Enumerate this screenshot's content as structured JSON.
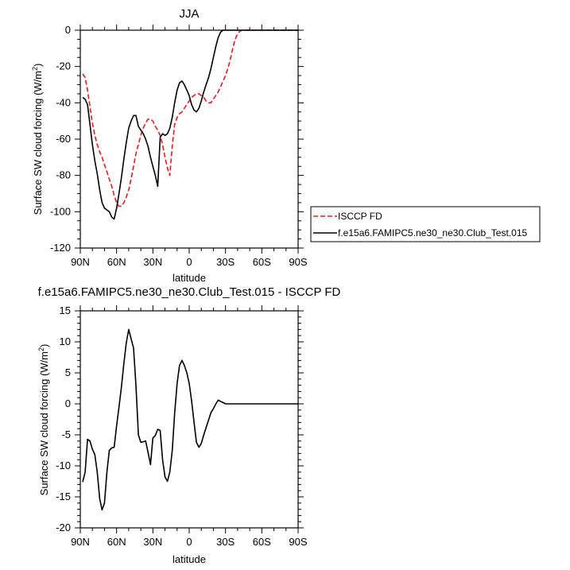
{
  "chart_data": [
    {
      "type": "line",
      "title": "JJA",
      "xlabel": "latitude",
      "ylabel": "Surface SW cloud forcing (W/m",
      "ylabel_sup": "2",
      "ylabel_close": ")",
      "xlim": [
        90,
        -90
      ],
      "ylim": [
        -120,
        0
      ],
      "x_ticks": [
        {
          "value": 90,
          "label": "90N"
        },
        {
          "value": 60,
          "label": "60N"
        },
        {
          "value": 30,
          "label": "30N"
        },
        {
          "value": 0,
          "label": "0"
        },
        {
          "value": -30,
          "label": "30S"
        },
        {
          "value": -60,
          "label": "60S"
        },
        {
          "value": -90,
          "label": "90S"
        }
      ],
      "y_ticks": [
        0,
        -20,
        -40,
        -60,
        -80,
        -100,
        -120
      ],
      "grid": false,
      "legend": {
        "placement": "right-outside"
      },
      "series": [
        {
          "name": "ISCCP FD",
          "color": "#e8191f",
          "dash": "dashed",
          "x": [
            88,
            86,
            84,
            82,
            80,
            78,
            76,
            74,
            72,
            70,
            68,
            66,
            64,
            62,
            60,
            58,
            56,
            54,
            52,
            50,
            48,
            46,
            44,
            42,
            40,
            38,
            36,
            34,
            32,
            30,
            28,
            26,
            24,
            22,
            20,
            18,
            16,
            14,
            12,
            10,
            8,
            6,
            4,
            2,
            0,
            -2,
            -4,
            -6,
            -8,
            -10,
            -12,
            -14,
            -16,
            -18,
            -20,
            -22,
            -24,
            -26,
            -28,
            -30,
            -32,
            -34,
            -36,
            -38,
            -40,
            -42,
            -44,
            -46,
            -48,
            -50,
            -52,
            -54,
            -56,
            -58,
            -60,
            -62,
            -64,
            -66,
            -68,
            -70,
            -72,
            -74,
            -76,
            -78,
            -80,
            -82,
            -84,
            -86,
            -88,
            -90
          ],
          "values": [
            -24,
            -26,
            -33,
            -42,
            -51,
            -58,
            -63,
            -67,
            -70,
            -74,
            -78,
            -82,
            -86,
            -91,
            -95,
            -97,
            -97,
            -95,
            -92,
            -88,
            -82,
            -75,
            -68,
            -63,
            -58,
            -54,
            -51,
            -49,
            -49,
            -50,
            -53,
            -55,
            -58,
            -63,
            -70,
            -76,
            -80,
            -64,
            -52,
            -48,
            -46,
            -45,
            -43,
            -41,
            -39,
            -37,
            -36,
            -35,
            -35,
            -36,
            -37,
            -39,
            -40,
            -40,
            -38,
            -36,
            -34,
            -31,
            -28,
            -25,
            -21,
            -16,
            -10,
            -5,
            -2,
            -0.5,
            0,
            0,
            0,
            0,
            0,
            0,
            0,
            0,
            0,
            0,
            0,
            0,
            0,
            0,
            0,
            0,
            0,
            0,
            0,
            0,
            0,
            0,
            0,
            0
          ]
        },
        {
          "name": "f.e15a6.FAMIPC5.ne30_ne30.Club_Test.015",
          "color": "#000000",
          "dash": "solid",
          "x": [
            88,
            86,
            84,
            82,
            80,
            78,
            76,
            74,
            72,
            70,
            68,
            66,
            64,
            62,
            60,
            58,
            56,
            54,
            52,
            50,
            48,
            46,
            44,
            42,
            40,
            38,
            36,
            34,
            32,
            30,
            28,
            26,
            24,
            22,
            20,
            18,
            16,
            14,
            12,
            10,
            8,
            6,
            4,
            2,
            0,
            -2,
            -4,
            -6,
            -8,
            -10,
            -12,
            -14,
            -16,
            -18,
            -20,
            -22,
            -24,
            -26,
            -28,
            -30,
            -32,
            -34,
            -36,
            -38,
            -40,
            -42,
            -44,
            -46,
            -48,
            -50,
            -52,
            -54,
            -56,
            -58,
            -60,
            -62,
            -64,
            -66,
            -68,
            -70,
            -72,
            -74,
            -76,
            -78,
            -80,
            -82,
            -84,
            -86,
            -88,
            -90
          ],
          "values": [
            -37,
            -38,
            -41,
            -52,
            -63,
            -72,
            -79,
            -88,
            -95,
            -98,
            -99,
            -100,
            -103,
            -104,
            -98,
            -90,
            -81,
            -71,
            -62,
            -54,
            -50,
            -47,
            -47,
            -53,
            -55,
            -57,
            -60,
            -64,
            -70,
            -75,
            -80,
            -86,
            -59,
            -57,
            -58,
            -57,
            -54,
            -48,
            -40,
            -33,
            -29,
            -28,
            -30,
            -33,
            -36,
            -41,
            -44,
            -45,
            -43,
            -39,
            -34,
            -30,
            -26,
            -21,
            -15,
            -9,
            -4,
            -1,
            0,
            0,
            0,
            0,
            0,
            0,
            0,
            0,
            0,
            0,
            0,
            0,
            0,
            0,
            0,
            0,
            0,
            0,
            0,
            0,
            0,
            0,
            0,
            0,
            0,
            0,
            0,
            0,
            0,
            0,
            0,
            0
          ]
        }
      ]
    },
    {
      "type": "line",
      "title": "f.e15a6.FAMIPC5.ne30_ne30.Club_Test.015 - ISCCP FD",
      "xlabel": "latitude",
      "ylabel": "Surface SW cloud forcing (W/m",
      "ylabel_sup": "2",
      "ylabel_close": ")",
      "xlim": [
        90,
        -90
      ],
      "ylim": [
        -20,
        15
      ],
      "x_ticks": [
        {
          "value": 90,
          "label": "90N"
        },
        {
          "value": 60,
          "label": "60N"
        },
        {
          "value": 30,
          "label": "30N"
        },
        {
          "value": 0,
          "label": "0"
        },
        {
          "value": -30,
          "label": "30S"
        },
        {
          "value": -60,
          "label": "60S"
        },
        {
          "value": -90,
          "label": "90S"
        }
      ],
      "y_ticks": [
        15,
        10,
        5,
        0,
        -5,
        -10,
        -15,
        -20
      ],
      "grid": false,
      "series": [
        {
          "color": "#000000",
          "dash": "solid",
          "x": [
            88,
            86,
            84,
            82,
            80,
            78,
            76,
            74,
            72,
            70,
            68,
            66,
            64,
            62,
            60,
            58,
            56,
            54,
            52,
            50,
            48,
            46,
            44,
            42,
            40,
            38,
            36,
            34,
            32,
            30,
            28,
            26,
            24,
            22,
            20,
            18,
            16,
            14,
            12,
            10,
            8,
            6,
            4,
            2,
            0,
            -2,
            -4,
            -6,
            -8,
            -10,
            -12,
            -14,
            -16,
            -18,
            -20,
            -22,
            -24,
            -26,
            -28,
            -30,
            -32,
            -34,
            -36,
            -38,
            -40,
            -42,
            -44,
            -46,
            -48,
            -50,
            -52,
            -54,
            -56,
            -58,
            -60,
            -62,
            -64,
            -66,
            -68,
            -70,
            -72,
            -74,
            -76,
            -78,
            -80,
            -82,
            -84,
            -86,
            -88,
            -90
          ],
          "values": [
            -12.6,
            -11,
            -5.7,
            -6,
            -7.3,
            -8.2,
            -11,
            -15.3,
            -17.1,
            -16,
            -11,
            -7.5,
            -7.1,
            -7,
            -3.5,
            -0.5,
            2.8,
            6.5,
            9.8,
            12,
            10.5,
            9,
            3,
            -5,
            -6.2,
            -6.1,
            -6,
            -7.8,
            -9.8,
            -5.5,
            -5.1,
            -4.1,
            -4.3,
            -9,
            -11.8,
            -12.5,
            -11,
            -7.5,
            -1.5,
            3.3,
            6.2,
            7,
            6.2,
            5,
            3.3,
            0.5,
            -3,
            -6.2,
            -7,
            -6.4,
            -5,
            -3.8,
            -2.6,
            -1.4,
            -0.8,
            0,
            0.6,
            0.4,
            0.2,
            0,
            0,
            0,
            0,
            0,
            0,
            0,
            0,
            0,
            0,
            0,
            0,
            0,
            0,
            0,
            0,
            0,
            0,
            0,
            0,
            0,
            0,
            0,
            0,
            0,
            0,
            0,
            0,
            0,
            0,
            0
          ]
        }
      ]
    }
  ]
}
